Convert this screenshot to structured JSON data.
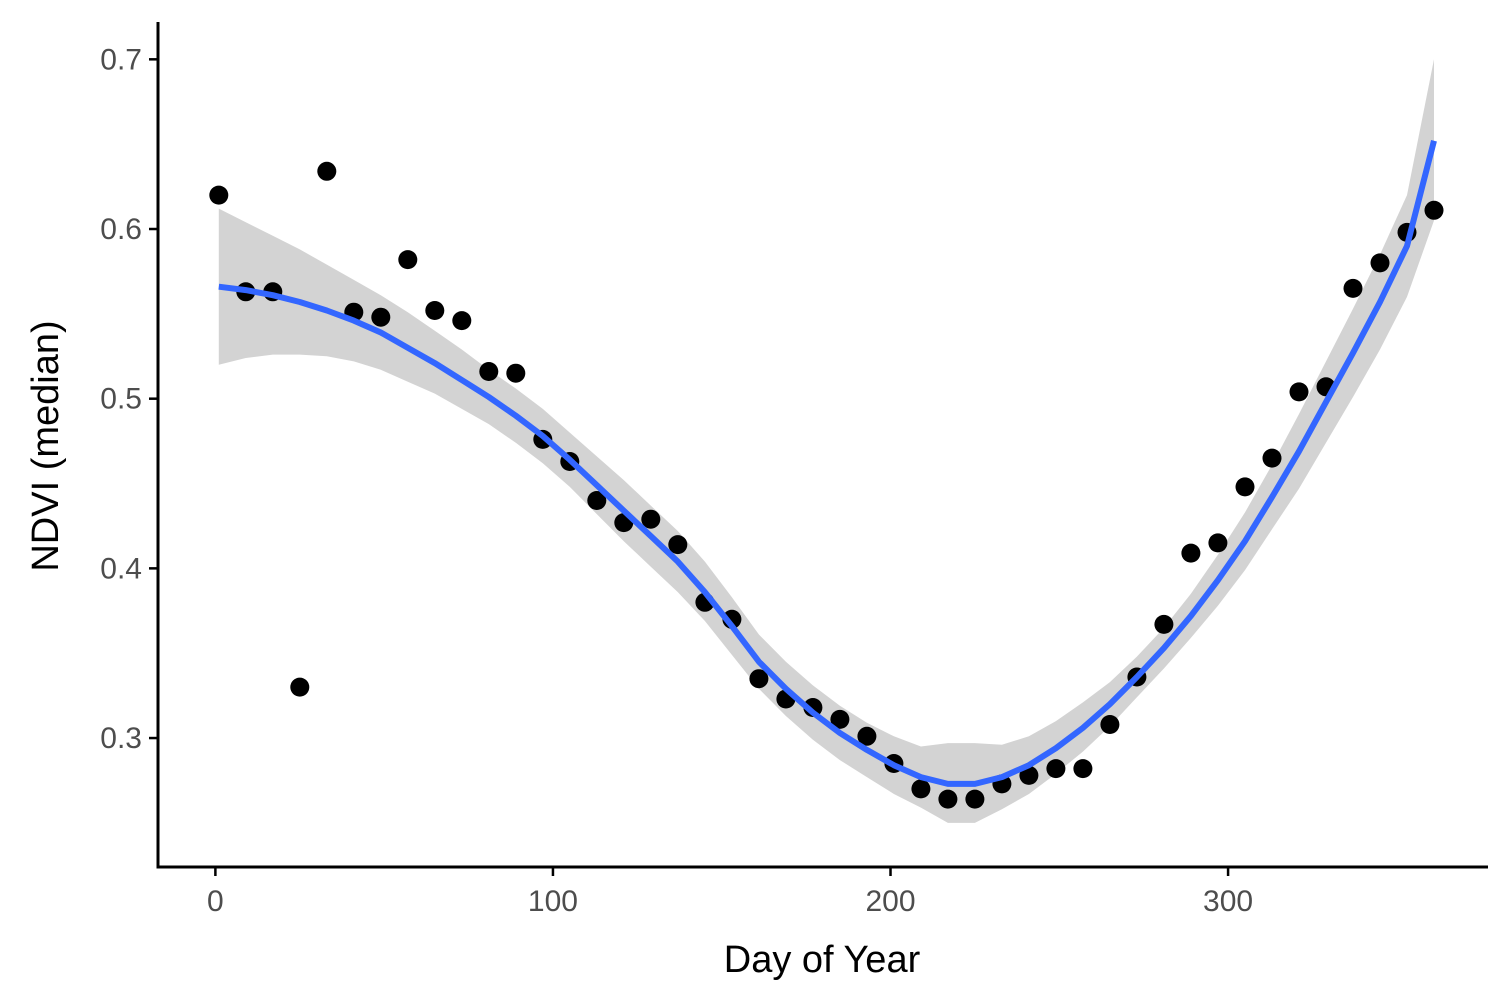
{
  "chart_data": {
    "type": "scatter",
    "xlabel": "Day of Year",
    "ylabel": "NDVI (median)",
    "xlim": [
      -17,
      377
    ],
    "ylim": [
      0.224,
      0.722
    ],
    "x_ticks": [
      0,
      100,
      200,
      300
    ],
    "y_ticks": [
      0.3,
      0.4,
      0.5,
      0.6,
      0.7
    ],
    "x_tick_labels": [
      "0",
      "100",
      "200",
      "300"
    ],
    "y_tick_labels": [
      "0.3",
      "0.4",
      "0.5",
      "0.6",
      "0.7"
    ],
    "grid": false,
    "legend": "none",
    "points": {
      "x": [
        1,
        9,
        17,
        25,
        33,
        41,
        49,
        57,
        65,
        73,
        81,
        89,
        97,
        105,
        113,
        121,
        129,
        137,
        145,
        153,
        161,
        169,
        177,
        185,
        193,
        201,
        209,
        217,
        225,
        233,
        241,
        249,
        257,
        265,
        273,
        281,
        289,
        297,
        305,
        313,
        321,
        329,
        337,
        345,
        353,
        361
      ],
      "y": [
        0.62,
        0.563,
        0.563,
        0.33,
        0.634,
        0.551,
        0.548,
        0.582,
        0.552,
        0.546,
        0.516,
        0.515,
        0.476,
        0.463,
        0.44,
        0.427,
        0.429,
        0.414,
        0.38,
        0.37,
        0.335,
        0.323,
        0.318,
        0.311,
        0.301,
        0.285,
        0.27,
        0.264,
        0.264,
        0.273,
        0.278,
        0.282,
        0.282,
        0.308,
        0.336,
        0.367,
        0.409,
        0.415,
        0.448,
        0.465,
        0.504,
        0.507,
        0.565,
        0.58,
        0.598,
        0.611
      ]
    },
    "smooth": {
      "x": [
        1,
        9,
        17,
        25,
        33,
        41,
        49,
        57,
        65,
        73,
        81,
        89,
        97,
        105,
        113,
        121,
        129,
        137,
        145,
        153,
        161,
        169,
        177,
        185,
        193,
        201,
        209,
        217,
        225,
        233,
        241,
        249,
        257,
        265,
        273,
        281,
        289,
        297,
        305,
        313,
        321,
        329,
        337,
        345,
        353,
        361
      ],
      "fit": [
        0.566,
        0.564,
        0.561,
        0.557,
        0.552,
        0.546,
        0.539,
        0.53,
        0.521,
        0.511,
        0.501,
        0.49,
        0.478,
        0.464,
        0.449,
        0.434,
        0.419,
        0.404,
        0.386,
        0.366,
        0.345,
        0.329,
        0.315,
        0.303,
        0.293,
        0.284,
        0.277,
        0.273,
        0.273,
        0.277,
        0.284,
        0.294,
        0.306,
        0.32,
        0.336,
        0.353,
        0.372,
        0.393,
        0.416,
        0.442,
        0.469,
        0.498,
        0.527,
        0.557,
        0.59,
        0.652
      ],
      "lower": [
        0.52,
        0.524,
        0.526,
        0.526,
        0.525,
        0.522,
        0.517,
        0.51,
        0.503,
        0.494,
        0.485,
        0.474,
        0.462,
        0.448,
        0.432,
        0.416,
        0.401,
        0.386,
        0.369,
        0.349,
        0.329,
        0.313,
        0.299,
        0.287,
        0.277,
        0.267,
        0.259,
        0.25,
        0.25,
        0.258,
        0.267,
        0.279,
        0.292,
        0.307,
        0.324,
        0.341,
        0.359,
        0.378,
        0.399,
        0.423,
        0.447,
        0.474,
        0.501,
        0.529,
        0.56,
        0.605
      ],
      "upper": [
        0.612,
        0.604,
        0.596,
        0.588,
        0.579,
        0.57,
        0.561,
        0.551,
        0.54,
        0.529,
        0.517,
        0.506,
        0.494,
        0.48,
        0.466,
        0.452,
        0.437,
        0.422,
        0.404,
        0.383,
        0.361,
        0.345,
        0.331,
        0.319,
        0.309,
        0.301,
        0.295,
        0.297,
        0.297,
        0.296,
        0.301,
        0.31,
        0.321,
        0.333,
        0.348,
        0.365,
        0.385,
        0.408,
        0.433,
        0.461,
        0.491,
        0.522,
        0.553,
        0.585,
        0.62,
        0.7
      ]
    },
    "colors": {
      "points": "#000000",
      "smooth_line": "#3366ff",
      "confidence_band": "#d3d3d3",
      "axis": "#000000",
      "tick_label": "#4d4d4d"
    }
  }
}
